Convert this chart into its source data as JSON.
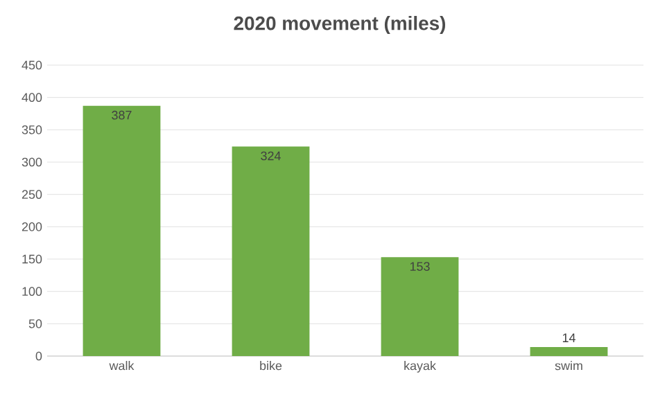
{
  "chart_data": {
    "type": "bar",
    "title": "2020 movement (miles)",
    "categories": [
      "walk",
      "bike",
      "kayak",
      "swim"
    ],
    "values": [
      387,
      324,
      153,
      14
    ],
    "color": "#70ad47",
    "ylim": [
      0,
      450
    ],
    "yticks": [
      0,
      50,
      100,
      150,
      200,
      250,
      300,
      350,
      400,
      450
    ],
    "grid": "y",
    "data_labels": true
  }
}
